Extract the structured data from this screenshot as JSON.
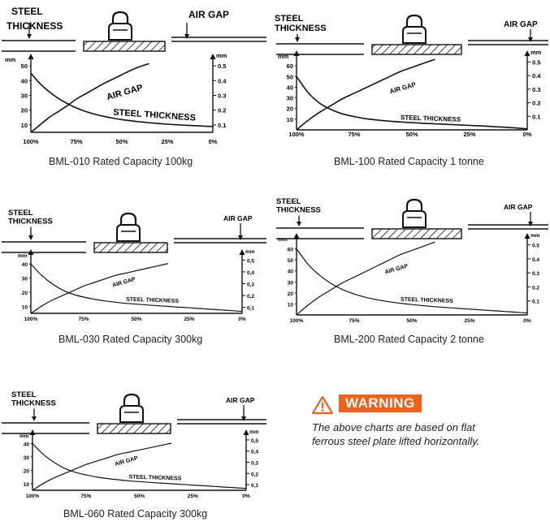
{
  "charts": [
    {
      "id": "bml-010",
      "caption": "BML-010 Rated Capacity 100kg",
      "label_steel": [
        "STEEL",
        "THICKNESS"
      ],
      "label_airgap": "AIR GAP",
      "y_unit_left": "mm",
      "y_unit_right": "mm",
      "curve_label_air": "AIR GAP",
      "curve_label_steel": "STEEL THICKNESS",
      "chart_data": {
        "type": "line",
        "x_ticks": [
          "100%",
          "75%",
          "50%",
          "25%",
          "0%"
        ],
        "y_left_ticks": [
          "10",
          "20",
          "30",
          "40",
          "50"
        ],
        "y_right_ticks": [
          "0.1",
          "0.2",
          "0.3",
          "0.4",
          "0.5"
        ],
        "ylim_left": [
          5,
          55
        ],
        "ylim_right": [
          0.05,
          0.55
        ],
        "series": [
          {
            "name": "STEEL THICKNESS",
            "axis": "left",
            "x": [
              100,
              95,
              90,
              85,
              80,
              75,
              70,
              65,
              60,
              55,
              50,
              45,
              40,
              35,
              30,
              25,
              20,
              15,
              10,
              5,
              0
            ],
            "y": [
              45,
              38,
              32.5,
              28,
              24.5,
              21.5,
              19.2,
              17.3,
              15.8,
              14.6,
              13.6,
              12.8,
              12.1,
              11.5,
              11,
              10.5,
              10.1,
              9.8,
              9.5,
              9.2,
              9
            ]
          },
          {
            "name": "AIR GAP",
            "axis": "right",
            "x": [
              100,
              95,
              90,
              85,
              80,
              75,
              70,
              65,
              60,
              55,
              50,
              45,
              40,
              35
            ],
            "y": [
              0.05,
              0.1,
              0.15,
              0.19,
              0.23,
              0.275,
              0.31,
              0.345,
              0.38,
              0.41,
              0.44,
              0.47,
              0.495,
              0.515
            ]
          }
        ]
      }
    },
    {
      "id": "bml-100",
      "caption": "BML-100 Rated Capacity 1 tonne",
      "label_steel": [
        "STEEL",
        "THICKNESS"
      ],
      "label_airgap": "AIR GAP",
      "y_unit_left": "mm",
      "y_unit_right": "mm",
      "curve_label_air": "AIR GAP",
      "curve_label_steel": "STEEL THICKNESS",
      "chart_data": {
        "type": "line",
        "x_ticks": [
          "100%",
          "75%",
          "50%",
          "25%",
          "0%"
        ],
        "y_left_ticks": [
          "10",
          "20",
          "30",
          "40",
          "50",
          "60"
        ],
        "y_right_ticks": [
          "0.1",
          "0.2",
          "0.3",
          "0.4",
          "0.5"
        ],
        "ylim_left": [
          0,
          70
        ],
        "ylim_right": [
          0,
          0.55
        ],
        "series": [
          {
            "name": "STEEL THICKNESS",
            "axis": "left",
            "x": [
              100,
              95,
              90,
              85,
              80,
              75,
              70,
              65,
              60,
              55,
              50,
              45,
              40,
              35,
              30,
              25,
              20,
              15,
              10,
              5,
              0
            ],
            "y": [
              50,
              35,
              25,
              19,
              15,
              12.5,
              10.5,
              9.2,
              8.2,
              7.4,
              6.8,
              6.2,
              5.7,
              5.2,
              4.7,
              4.2,
              3.7,
              3.1,
              2.5,
              1.8,
              1
            ]
          },
          {
            "name": "AIR GAP",
            "axis": "right",
            "x": [
              100,
              95,
              90,
              85,
              80,
              75,
              70,
              65,
              60,
              55,
              50,
              45,
              40
            ],
            "y": [
              0,
              0.07,
              0.13,
              0.18,
              0.23,
              0.27,
              0.31,
              0.35,
              0.39,
              0.43,
              0.46,
              0.49,
              0.52
            ]
          }
        ]
      }
    },
    {
      "id": "bml-030",
      "caption": "BML-030 Rated Capacity 300kg",
      "label_steel": [
        "STEEL",
        "THICKNESS"
      ],
      "label_airgap": "AIR GAP",
      "y_unit_left": "mm",
      "y_unit_right": "mm",
      "curve_label_air": "AIR GAP",
      "curve_label_steel": "STEEL THICKNESS",
      "chart_data": {
        "type": "line",
        "x_ticks": [
          "100%",
          "75%",
          "50%",
          "25%",
          "0%"
        ],
        "y_left_ticks": [
          "10",
          "20",
          "30",
          "40"
        ],
        "y_right_ticks": [
          "0,1",
          "0,2",
          "0,3",
          "0,4",
          "0,5"
        ],
        "ylim_left": [
          5,
          47
        ],
        "ylim_right": [
          0.05,
          0.55
        ],
        "series": [
          {
            "name": "STEEL THICKNESS",
            "axis": "left",
            "x": [
              100,
              95,
              90,
              85,
              80,
              75,
              70,
              65,
              60,
              55,
              50,
              45,
              40,
              35,
              30,
              25,
              20,
              15,
              10,
              5,
              0
            ],
            "y": [
              40,
              32,
              26,
              21.5,
              18.5,
              16.5,
              15,
              13.8,
              12.9,
              12.1,
              11.5,
              10.9,
              10.4,
              9.9,
              9.4,
              8.9,
              8.4,
              7.9,
              7.4,
              6.9,
              6.4
            ]
          },
          {
            "name": "AIR GAP",
            "axis": "right",
            "x": [
              100,
              95,
              90,
              85,
              80,
              75,
              70,
              65,
              60,
              55,
              50,
              45,
              40,
              35
            ],
            "y": [
              0.05,
              0.11,
              0.16,
              0.2,
              0.24,
              0.28,
              0.31,
              0.34,
              0.37,
              0.39,
              0.41,
              0.43,
              0.45,
              0.47
            ]
          }
        ]
      }
    },
    {
      "id": "bml-200",
      "caption": "BML-200 Rated Capacity 2 tonne",
      "label_steel": [
        "STEEL",
        "THICKNESS"
      ],
      "label_airgap": "AIR GAP",
      "y_unit_left": "mm",
      "y_unit_right": "mm",
      "curve_label_air": "AIR GAP",
      "curve_label_steel": "STEEL THICKNESS",
      "chart_data": {
        "type": "line",
        "x_ticks": [
          "100%",
          "75%",
          "50%",
          "25%",
          "0%"
        ],
        "y_left_ticks": [
          "10",
          "20",
          "30",
          "40",
          "50",
          "60"
        ],
        "y_right_ticks": [
          "0.1",
          "0.2",
          "0.3",
          "0.4",
          "0.5"
        ],
        "ylim_left": [
          0,
          70
        ],
        "ylim_right": [
          0,
          0.55
        ],
        "series": [
          {
            "name": "STEEL THICKNESS",
            "axis": "left",
            "x": [
              100,
              95,
              90,
              85,
              80,
              75,
              70,
              65,
              60,
              55,
              50,
              45,
              40,
              35,
              30,
              25,
              20,
              15,
              10,
              5,
              0
            ],
            "y": [
              60,
              46,
              36,
              28.5,
              23,
              19,
              16,
              13.8,
              12,
              10.6,
              9.4,
              8.4,
              7.5,
              6.7,
              6,
              5.3,
              4.6,
              3.9,
              3.2,
              2.5,
              1.8
            ]
          },
          {
            "name": "AIR GAP",
            "axis": "right",
            "x": [
              100,
              95,
              90,
              85,
              80,
              75,
              70,
              65,
              60,
              55,
              50,
              45,
              40
            ],
            "y": [
              0,
              0.07,
              0.13,
              0.18,
              0.23,
              0.27,
              0.31,
              0.35,
              0.39,
              0.43,
              0.46,
              0.49,
              0.52
            ]
          }
        ]
      }
    },
    {
      "id": "bml-060",
      "caption": "BML-060 Rated Capacity 300kg",
      "label_steel": [
        "STEEL",
        "THICKNESS"
      ],
      "label_airgap": "AIR GAP",
      "y_unit_left": "mm",
      "y_unit_right": "mm",
      "curve_label_air": "AIR GAP",
      "curve_label_steel": "STEEL THICKNESS",
      "chart_data": {
        "type": "line",
        "x_ticks": [
          "100%",
          "75%",
          "50%",
          "25%",
          "0%"
        ],
        "y_left_ticks": [
          "10",
          "20",
          "30",
          "40"
        ],
        "y_right_ticks": [
          "0,1",
          "0,2",
          "0,3",
          "0,4",
          "0,5"
        ],
        "ylim_left": [
          5,
          47
        ],
        "ylim_right": [
          0.05,
          0.55
        ],
        "series": [
          {
            "name": "STEEL THICKNESS",
            "axis": "left",
            "x": [
              100,
              95,
              90,
              85,
              80,
              75,
              70,
              65,
              60,
              55,
              50,
              45,
              40,
              35,
              30,
              25,
              20,
              15,
              10,
              5,
              0
            ],
            "y": [
              40,
              32,
              26,
              21.5,
              18.5,
              16.5,
              15,
              13.8,
              12.9,
              12.1,
              11.5,
              10.9,
              10.4,
              9.9,
              9.4,
              8.9,
              8.4,
              7.9,
              7.4,
              6.9,
              6.4
            ]
          },
          {
            "name": "AIR GAP",
            "axis": "right",
            "x": [
              100,
              95,
              90,
              85,
              80,
              75,
              70,
              65,
              60,
              55,
              50,
              45,
              40,
              35
            ],
            "y": [
              0.05,
              0.11,
              0.16,
              0.2,
              0.24,
              0.28,
              0.31,
              0.34,
              0.37,
              0.39,
              0.41,
              0.43,
              0.45,
              0.47
            ]
          }
        ]
      }
    }
  ],
  "warning": {
    "title": "WARNING",
    "text": "The above charts are based on flat ferrous steel plate lifted horizontally.",
    "accent_color": "#f0621b",
    "icon": "warning-triangle-icon"
  }
}
